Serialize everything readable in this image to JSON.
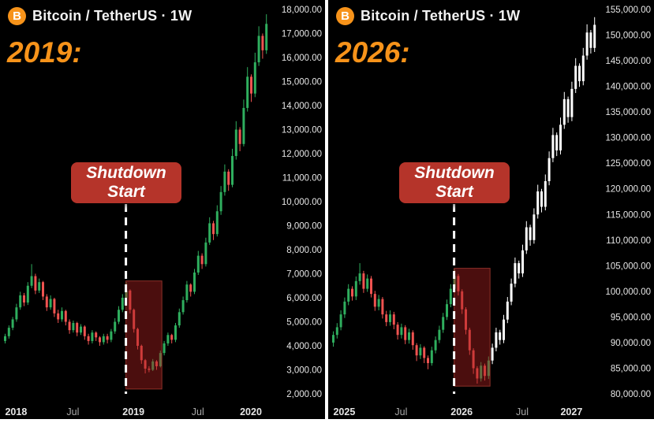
{
  "colors": {
    "background": "#000000",
    "divider": "#ffffff",
    "candle_up": "#2fae5e",
    "candle_down": "#ef5350",
    "candle_projection": "#ffffff",
    "accent_orange": "#f7931a",
    "badge_background": "#b5342a",
    "box_fill": "rgba(167,32,32,0.45)",
    "box_stroke": "rgba(221,82,68,0.55)",
    "axis_text": "#e6e6e6",
    "axis_text_minor": "#a8a8a8"
  },
  "panels": [
    {
      "header_title": "Bitcoin / TetherUS · 1W",
      "bitcoin_glyph": "B",
      "year_label": "2019:",
      "badge_line1": "Shutdown",
      "badge_line2": "Start"
    },
    {
      "header_title": "Bitcoin / TetherUS · 1W",
      "bitcoin_glyph": "B",
      "year_label": "2026:",
      "badge_line1": "Shutdown",
      "badge_line2": "Start"
    }
  ],
  "chart_data": [
    {
      "type": "candlestick",
      "title": "Bitcoin / TetherUS · 1W",
      "period_label": "2019",
      "ylim": [
        2000,
        18000
      ],
      "y_tick_step": 1000,
      "y_tick_format": "comma-2dp",
      "x_ticks": [
        {
          "label": "2018",
          "idx": 3,
          "minor": false
        },
        {
          "label": "Jul",
          "idx": 18,
          "minor": true
        },
        {
          "label": "2019",
          "idx": 34,
          "minor": false
        },
        {
          "label": "Jul",
          "idx": 51,
          "minor": true
        },
        {
          "label": "2020",
          "idx": 65,
          "minor": false
        }
      ],
      "annotations": {
        "badge_text": "Shutdown Start",
        "dashed_line_idx": 32,
        "highlight_box": {
          "start_idx": 32,
          "end_idx": 41,
          "top": 6700,
          "bottom": 2200
        }
      },
      "projection_start_idx": null,
      "candles_ohlc": [
        [
          4200,
          4500,
          4100,
          4400
        ],
        [
          4400,
          4850,
          4300,
          4750
        ],
        [
          4750,
          5200,
          4650,
          5100
        ],
        [
          5100,
          5750,
          5000,
          5600
        ],
        [
          5600,
          6250,
          5500,
          6100
        ],
        [
          6100,
          6200,
          5650,
          5800
        ],
        [
          5800,
          6650,
          5700,
          6500
        ],
        [
          6500,
          7400,
          6400,
          6900
        ],
        [
          6900,
          7000,
          6150,
          6300
        ],
        [
          6300,
          6800,
          6200,
          6650
        ],
        [
          6650,
          6700,
          5900,
          6050
        ],
        [
          6050,
          6150,
          5450,
          5600
        ],
        [
          5600,
          6100,
          5500,
          5950
        ],
        [
          5950,
          6000,
          5200,
          5350
        ],
        [
          5350,
          5500,
          4950,
          5100
        ],
        [
          5100,
          5600,
          5000,
          5450
        ],
        [
          5450,
          5500,
          4850,
          5000
        ],
        [
          5000,
          5100,
          4500,
          4650
        ],
        [
          4650,
          5050,
          4550,
          4950
        ],
        [
          4950,
          5000,
          4400,
          4550
        ],
        [
          4550,
          4900,
          4450,
          4800
        ],
        [
          4800,
          4850,
          4250,
          4400
        ],
        [
          4400,
          4500,
          4050,
          4200
        ],
        [
          4200,
          4650,
          4100,
          4550
        ],
        [
          4550,
          4600,
          4200,
          4350
        ],
        [
          4350,
          4400,
          4000,
          4150
        ],
        [
          4150,
          4500,
          4050,
          4400
        ],
        [
          4400,
          4500,
          4100,
          4250
        ],
        [
          4250,
          4700,
          4150,
          4600
        ],
        [
          4600,
          5150,
          4500,
          5000
        ],
        [
          5000,
          5650,
          4900,
          5500
        ],
        [
          5500,
          6150,
          5400,
          6000
        ],
        [
          6000,
          6650,
          5900,
          6300
        ],
        [
          6300,
          6350,
          5350,
          5500
        ],
        [
          5500,
          5550,
          4550,
          4700
        ],
        [
          4700,
          4750,
          3850,
          4000
        ],
        [
          4000,
          4050,
          3250,
          3400
        ],
        [
          3400,
          3450,
          2850,
          3050
        ],
        [
          3050,
          3150,
          2900,
          3000
        ],
        [
          3000,
          3450,
          2950,
          3350
        ],
        [
          3350,
          3400,
          3000,
          3150
        ],
        [
          3150,
          3800,
          3100,
          3700
        ],
        [
          3700,
          4200,
          3600,
          4100
        ],
        [
          4100,
          4550,
          4000,
          4450
        ],
        [
          4450,
          4500,
          4100,
          4250
        ],
        [
          4250,
          4950,
          4150,
          4850
        ],
        [
          4850,
          5550,
          4750,
          5400
        ],
        [
          5400,
          6050,
          5300,
          5900
        ],
        [
          5900,
          6700,
          5800,
          6550
        ],
        [
          6550,
          6600,
          6050,
          6250
        ],
        [
          6250,
          7200,
          6150,
          7050
        ],
        [
          7050,
          7950,
          6950,
          7750
        ],
        [
          7750,
          7850,
          7200,
          7400
        ],
        [
          7400,
          8500,
          7300,
          8300
        ],
        [
          8300,
          9350,
          8200,
          9100
        ],
        [
          9100,
          9200,
          8400,
          8650
        ],
        [
          8650,
          9850,
          8550,
          9600
        ],
        [
          9600,
          10650,
          9450,
          10400
        ],
        [
          10400,
          11550,
          10250,
          11250
        ],
        [
          11250,
          11350,
          10450,
          10700
        ],
        [
          10700,
          12200,
          10600,
          11900
        ],
        [
          11900,
          13350,
          11750,
          13000
        ],
        [
          13000,
          13100,
          12100,
          12400
        ],
        [
          12400,
          14250,
          12300,
          13900
        ],
        [
          13900,
          15600,
          13750,
          15200
        ],
        [
          15200,
          15300,
          14150,
          14500
        ],
        [
          14500,
          16200,
          14350,
          15800
        ],
        [
          15800,
          17300,
          15650,
          16900
        ],
        [
          16900,
          17000,
          15950,
          16300
        ],
        [
          16300,
          17800,
          16150,
          17400
        ]
      ]
    },
    {
      "type": "candlestick",
      "title": "Bitcoin / TetherUS · 1W",
      "period_label": "2026",
      "ylim": [
        80000,
        155000
      ],
      "y_tick_step": 5000,
      "y_tick_format": "comma-2dp",
      "x_ticks": [
        {
          "label": "2025",
          "idx": 3,
          "minor": false
        },
        {
          "label": "Jul",
          "idx": 18,
          "minor": true
        },
        {
          "label": "2026",
          "idx": 34,
          "minor": false
        },
        {
          "label": "Jul",
          "idx": 50,
          "minor": true
        },
        {
          "label": "2027",
          "idx": 63,
          "minor": false
        }
      ],
      "annotations": {
        "badge_text": "Shutdown Start",
        "dashed_line_idx": 32,
        "highlight_box": {
          "start_idx": 32,
          "end_idx": 41,
          "top": 104500,
          "bottom": 81500
        }
      },
      "projection_start_idx": 42,
      "candles_ohlc": [
        [
          90000,
          92200,
          89200,
          91500
        ],
        [
          91500,
          93800,
          90800,
          93000
        ],
        [
          93000,
          96300,
          92400,
          95500
        ],
        [
          95500,
          98800,
          94800,
          98000
        ],
        [
          98000,
          101400,
          97300,
          100500
        ],
        [
          100500,
          101000,
          98200,
          99000
        ],
        [
          99000,
          102900,
          98300,
          102000
        ],
        [
          102000,
          105500,
          101300,
          103500
        ],
        [
          103500,
          104000,
          99700,
          100500
        ],
        [
          100500,
          103300,
          99900,
          102500
        ],
        [
          102500,
          103000,
          98800,
          99500
        ],
        [
          99500,
          100100,
          96200,
          97000
        ],
        [
          97000,
          99300,
          96300,
          98500
        ],
        [
          98500,
          98900,
          94700,
          95500
        ],
        [
          95500,
          96200,
          93200,
          94000
        ],
        [
          94000,
          96300,
          93300,
          95500
        ],
        [
          95500,
          96000,
          92600,
          93500
        ],
        [
          93500,
          94000,
          90600,
          91500
        ],
        [
          91500,
          93700,
          90800,
          93000
        ],
        [
          93000,
          93400,
          89700,
          90500
        ],
        [
          90500,
          92700,
          89800,
          92000
        ],
        [
          92000,
          92400,
          88600,
          89500
        ],
        [
          89500,
          89900,
          86400,
          87500
        ],
        [
          87500,
          89700,
          86800,
          89000
        ],
        [
          89000,
          89300,
          86000,
          87000
        ],
        [
          87000,
          87500,
          84800,
          86000
        ],
        [
          86000,
          89200,
          85500,
          88500
        ],
        [
          88500,
          91200,
          87900,
          90500
        ],
        [
          90500,
          93300,
          89900,
          92500
        ],
        [
          92500,
          95800,
          91900,
          95000
        ],
        [
          95000,
          98400,
          94400,
          97500
        ],
        [
          97500,
          101400,
          96900,
          100500
        ],
        [
          100500,
          104300,
          99900,
          103000
        ],
        [
          103000,
          103400,
          99200,
          100000
        ],
        [
          100000,
          100400,
          95600,
          96500
        ],
        [
          96500,
          96900,
          91600,
          92500
        ],
        [
          92500,
          92900,
          87600,
          88500
        ],
        [
          88500,
          88900,
          83900,
          85000
        ],
        [
          85000,
          85400,
          82000,
          83000
        ],
        [
          83000,
          86200,
          82400,
          85500
        ],
        [
          85500,
          85900,
          82600,
          83500
        ],
        [
          83500,
          87300,
          82900,
          86500
        ],
        [
          86500,
          89800,
          85800,
          89000
        ],
        [
          89000,
          92900,
          88300,
          92000
        ],
        [
          92000,
          92500,
          89600,
          90500
        ],
        [
          90500,
          95400,
          89900,
          94500
        ],
        [
          94500,
          98900,
          93800,
          98000
        ],
        [
          98000,
          102500,
          97300,
          101500
        ],
        [
          101500,
          106600,
          100800,
          105500
        ],
        [
          105500,
          106000,
          102500,
          103500
        ],
        [
          103500,
          109100,
          102800,
          108000
        ],
        [
          108000,
          113700,
          107300,
          112500
        ],
        [
          112500,
          113000,
          108900,
          110000
        ],
        [
          110000,
          116200,
          109300,
          115000
        ],
        [
          115000,
          120800,
          114200,
          119500
        ],
        [
          119500,
          120000,
          115400,
          116500
        ],
        [
          116500,
          122800,
          115800,
          121500
        ],
        [
          121500,
          127300,
          120700,
          126000
        ],
        [
          126000,
          131900,
          125200,
          130500
        ],
        [
          130500,
          131000,
          126400,
          127500
        ],
        [
          127500,
          133900,
          126700,
          132500
        ],
        [
          132500,
          138900,
          131700,
          137500
        ],
        [
          137500,
          138000,
          132900,
          134000
        ],
        [
          134000,
          140900,
          133200,
          139500
        ],
        [
          139500,
          145500,
          138700,
          144000
        ],
        [
          144000,
          144500,
          139900,
          141000
        ],
        [
          141000,
          147500,
          140200,
          146000
        ],
        [
          146000,
          152100,
          145200,
          150500
        ],
        [
          150500,
          151000,
          146400,
          147500
        ],
        [
          147500,
          153500,
          146700,
          152000
        ]
      ]
    }
  ]
}
